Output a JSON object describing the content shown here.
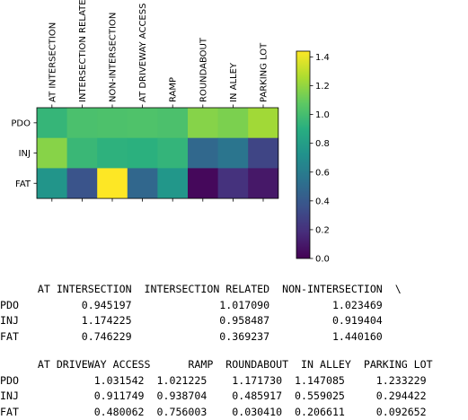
{
  "chart_data": {
    "type": "heatmap",
    "colormap": "viridis",
    "x_tick_labels": [
      "AT INTERSECTION",
      "INTERSECTION RELATED",
      "NON-INTERSECTION",
      "AT DRIVEWAY ACCESS",
      "RAMP",
      "ROUNDABOUT",
      "IN ALLEY",
      "PARKING LOT"
    ],
    "y_tick_labels": [
      "PDO",
      "INJ",
      "FAT"
    ],
    "values": [
      [
        0.945197,
        1.01709,
        1.023469,
        1.031542,
        1.021225,
        1.17173,
        1.147085,
        1.233229
      ],
      [
        1.174225,
        0.958487,
        0.919404,
        0.911749,
        0.938704,
        0.485917,
        0.559025,
        0.294422
      ],
      [
        0.746229,
        0.369237,
        1.44016,
        0.480062,
        0.756003,
        0.03041,
        0.206611,
        0.092652
      ]
    ],
    "color_range": [
      0.0,
      1.44016
    ],
    "colorbar_ticks": [
      "0.0",
      "0.2",
      "0.4",
      "0.6",
      "0.8",
      "1.0",
      "1.2",
      "1.4"
    ]
  },
  "dataframe_text": {
    "block1": {
      "header": "      AT INTERSECTION  INTERSECTION RELATED  NON-INTERSECTION  \\",
      "rows": [
        "PDO          0.945197              1.017090          1.023469   ",
        "INJ          1.174225              0.958487          0.919404   ",
        "FAT          0.746229              0.369237          1.440160   "
      ]
    },
    "block2": {
      "header": "      AT DRIVEWAY ACCESS      RAMP  ROUNDABOUT  IN ALLEY  PARKING LOT",
      "rows": [
        "PDO            1.031542  1.021225    1.171730  1.147085     1.233229",
        "INJ            0.911749  0.938704    0.485917  0.559025     0.294422",
        "FAT            0.480062  0.756003    0.030410  0.206611     0.092652"
      ]
    }
  }
}
